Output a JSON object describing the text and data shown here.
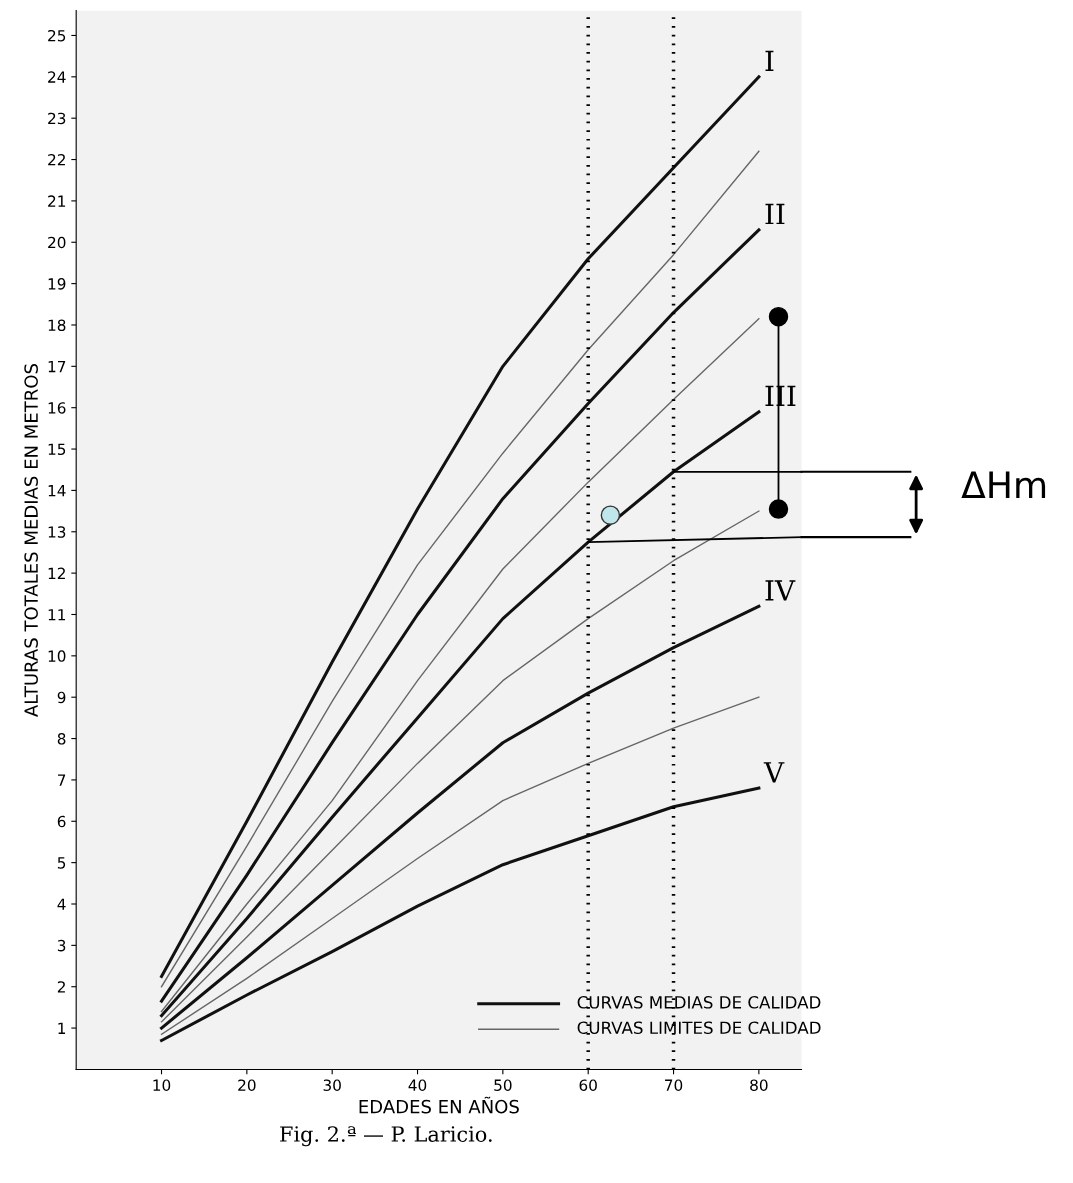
{
  "chart_data": {
    "type": "line",
    "title": "Fig. 2.ª — P. Laricio.",
    "xlabel": "EDADES EN AÑOS",
    "ylabel": "ALTURAS TOTALES MEDIAS EN METROS",
    "x": [
      10,
      20,
      30,
      40,
      50,
      60,
      70,
      80
    ],
    "series": [
      {
        "name": "I",
        "color": "#111111",
        "values": [
          2.25,
          6.0,
          9.85,
          13.55,
          17.0,
          19.6,
          21.8,
          24.0
        ]
      },
      {
        "color": "#666666",
        "values": [
          2.0,
          5.4,
          8.9,
          12.2,
          14.9,
          17.4,
          19.7,
          22.2
        ]
      },
      {
        "name": "II",
        "color": "#111111",
        "values": [
          1.65,
          4.7,
          7.9,
          11.0,
          13.8,
          16.1,
          18.3,
          20.3
        ]
      },
      {
        "color": "#666666",
        "values": [
          1.4,
          4.0,
          6.5,
          9.4,
          12.1,
          14.2,
          16.2,
          18.15
        ]
      },
      {
        "name": "III",
        "color": "#111111",
        "values": [
          1.3,
          3.65,
          6.1,
          8.5,
          10.9,
          12.75,
          14.45,
          15.9
        ]
      },
      {
        "color": "#666666",
        "values": [
          1.15,
          3.2,
          5.3,
          7.4,
          9.4,
          10.9,
          12.3,
          13.5
        ]
      },
      {
        "name": "IV",
        "color": "#111111",
        "values": [
          1.0,
          2.7,
          4.45,
          6.2,
          7.9,
          9.1,
          10.2,
          11.2
        ]
      },
      {
        "color": "#666666",
        "values": [
          0.85,
          2.2,
          3.65,
          5.1,
          6.5,
          7.4,
          8.25,
          9.0
        ]
      },
      {
        "name": "V",
        "color": "#111111",
        "values": [
          0.7,
          1.8,
          2.85,
          3.95,
          4.95,
          5.65,
          6.35,
          6.8
        ]
      },
      {
        "type": "line",
        "marker": "circle",
        "color": "#000000",
        "x": [
          82.3,
          82.3
        ],
        "values": [
          18.2,
          13.55
        ]
      },
      {
        "type": "scatter",
        "marker": "circle",
        "color": "#bfe6ea",
        "x": [
          62.6
        ],
        "values": [
          13.4
        ]
      },
      {
        "type": "line",
        "marker": "none",
        "color": "#000000",
        "x": [
          70,
          85
        ],
        "values": [
          14.45,
          14.45
        ]
      },
      {
        "type": "line",
        "marker": "none",
        "color": "#000000",
        "x": [
          60,
          85
        ],
        "values": [
          12.75,
          12.87
        ]
      }
    ],
    "ref_lines": [
      {
        "axis": "x",
        "value": 60,
        "color": "#000000",
        "line_style": "dotted"
      },
      {
        "axis": "x",
        "value": 70,
        "color": "#000000",
        "line_style": "dotted"
      }
    ],
    "annotations": [
      "ΔHm",
      "CURVAS MEDIAS DE CALIDAD",
      "CURVAS LIMITES DE CALIDAD"
    ],
    "xlim": [
      0,
      85
    ],
    "ylim": [
      0,
      25.6
    ],
    "xticks": [
      10,
      20,
      30,
      40,
      50,
      60,
      70,
      80
    ],
    "yticks": [
      1,
      2,
      3,
      4,
      5,
      6,
      7,
      8,
      9,
      10,
      11,
      12,
      13,
      14,
      15,
      16,
      17,
      18,
      19,
      20,
      21,
      22,
      23,
      24,
      25
    ],
    "grid": false,
    "legend": false
  }
}
